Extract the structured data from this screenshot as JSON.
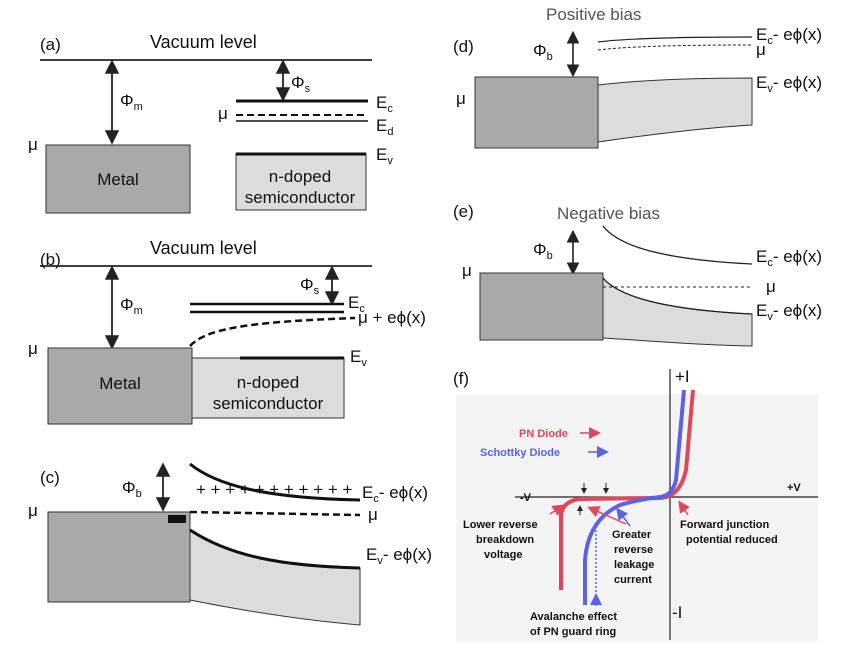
{
  "panels": {
    "a": {
      "label": "(a)",
      "vacuum_label": "Vacuum level",
      "phi_m": "Φ",
      "phi_m_sub": "m",
      "phi_s": "Φ",
      "phi_s_sub": "s",
      "mu": "μ",
      "metal_label": "Metal",
      "semi_line1": "n-doped",
      "semi_line2": "semiconductor",
      "ec": "E",
      "ec_sub": "c",
      "ed": "E",
      "ed_sub": "d",
      "ev": "E",
      "ev_sub": "v"
    },
    "b": {
      "label": "(b)",
      "vacuum_label": "Vacuum level",
      "phi_m": "Φ",
      "phi_m_sub": "m",
      "phi_s": "Φ",
      "phi_s_sub": "s",
      "mu": "μ",
      "mu_shift": "μ + eϕ(x)",
      "metal_label": "Metal",
      "semi_line1": "n-doped",
      "semi_line2": "semiconductor",
      "ec": "E",
      "ec_sub": "c",
      "ev": "E",
      "ev_sub": "v"
    },
    "c": {
      "label": "(c)",
      "phi_b": "Φ",
      "phi_b_sub": "b",
      "mu": "μ",
      "mu_right": "μ",
      "ec": "E",
      "ec_sub": "c",
      "ec_tail": "- eϕ(x)",
      "ev": "E",
      "ev_sub": "v",
      "ev_tail": "- eϕ(x)"
    },
    "d": {
      "label": "(d)",
      "title": "Positive bias",
      "phi_b": "Φ",
      "phi_b_sub": "b",
      "mu": "μ",
      "mu_right": "μ",
      "ec": "E",
      "ec_sub": "c",
      "ec_tail": "- eϕ(x)",
      "ev": "E",
      "ev_sub": "v",
      "ev_tail": "- eϕ(x)"
    },
    "e": {
      "label": "(e)",
      "title": "Negative bias",
      "phi_b": "Φ",
      "phi_b_sub": "b",
      "mu": "μ",
      "mu_right": "μ",
      "ec": "E",
      "ec_sub": "c",
      "ec_tail": "- eϕ(x)",
      "ev": "E",
      "ev_sub": "v",
      "ev_tail": "- eϕ(x)"
    },
    "f": {
      "label": "(f)",
      "plus_i": "+I",
      "minus_i": "-I",
      "minus_v": "-V",
      "plus_v": "+V",
      "pn_legend": "PN  Diode",
      "schottky_legend": "Schottky Diode",
      "ann_lower_1": "Lower reverse",
      "ann_lower_2": "breakdown",
      "ann_lower_3": "voltage",
      "ann_greater_1": "Greater",
      "ann_greater_2": "reverse",
      "ann_greater_3": "leakage",
      "ann_greater_4": "current",
      "ann_forward_1": "Forward junction",
      "ann_forward_2": "potential reduced",
      "ann_avalanche_1": "Avalanche effect",
      "ann_avalanche_2": "of PN guard ring"
    }
  },
  "colors": {
    "metal": "#a9a9a9",
    "semiconductor": "#dcdcdc",
    "pn_curve": "#e0475a",
    "schottky_curve": "#5a63e6",
    "panel_f_bg": "#f4f4f4"
  }
}
